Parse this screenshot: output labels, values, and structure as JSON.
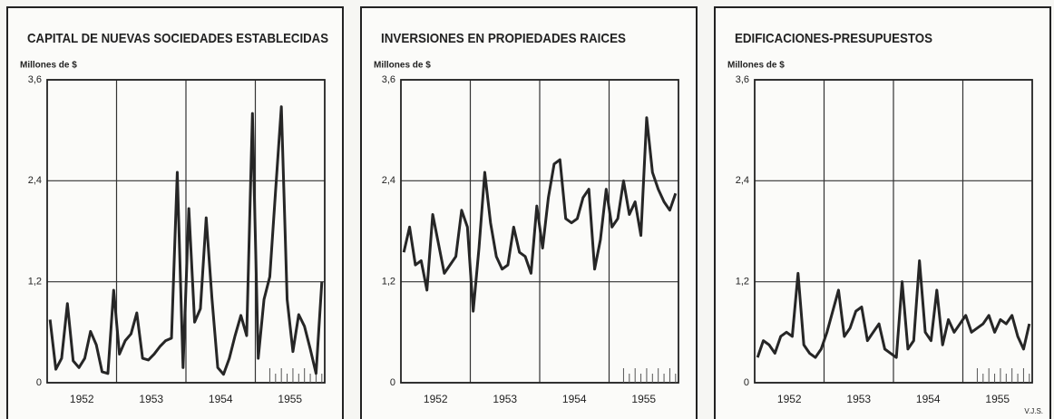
{
  "chart_data": [
    {
      "type": "line",
      "title": "CAPITAL DE NUEVAS SOCIEDADES ESTABLECIDAS",
      "ylabel": "Millones de $",
      "categories": [
        null,
        null,
        null,
        null,
        null,
        "1952",
        null,
        null,
        null,
        null,
        null,
        null,
        null,
        null,
        null,
        null,
        null,
        "1953",
        null,
        null,
        null,
        null,
        null,
        null,
        null,
        null,
        null,
        null,
        null,
        "1954",
        null,
        null,
        null,
        null,
        null,
        null,
        null,
        null,
        null,
        null,
        null,
        "1955",
        null,
        null,
        null,
        null,
        null,
        null
      ],
      "values": [
        0.75,
        0.16,
        0.29,
        0.94,
        0.26,
        0.18,
        0.29,
        0.61,
        0.45,
        0.13,
        0.11,
        1.1,
        0.34,
        0.5,
        0.58,
        0.83,
        0.29,
        0.27,
        0.34,
        0.43,
        0.5,
        0.53,
        2.5,
        0.18,
        2.07,
        0.72,
        0.88,
        1.96,
        1.0,
        0.18,
        0.1,
        0.29,
        0.56,
        0.8,
        0.56,
        3.2,
        0.29,
        0.99,
        1.26,
        2.28,
        3.28,
        0.99,
        0.37,
        0.81,
        0.67,
        0.4,
        0.11,
        1.2
      ],
      "color": "#262626",
      "ylim": [
        0,
        3.6
      ],
      "yticks": [
        0,
        {
          "value": 1.2,
          "label": "1,2"
        },
        {
          "value": 2.4,
          "label": "2,4"
        },
        {
          "value": 3.6,
          "label": "3,6"
        }
      ],
      "grid": true
    },
    {
      "type": "line",
      "title": "INVERSIONES EN PROPIEDADES RAICES",
      "ylabel": "Millones de $",
      "categories": [
        null,
        null,
        null,
        null,
        null,
        "1952",
        null,
        null,
        null,
        null,
        null,
        null,
        null,
        null,
        null,
        null,
        null,
        "1953",
        null,
        null,
        null,
        null,
        null,
        null,
        null,
        null,
        null,
        null,
        null,
        "1954",
        null,
        null,
        null,
        null,
        null,
        null,
        null,
        null,
        null,
        null,
        null,
        "1955",
        null,
        null,
        null,
        null,
        null,
        null
      ],
      "values": [
        1.55,
        1.85,
        1.4,
        1.45,
        1.1,
        2.0,
        1.65,
        1.3,
        1.4,
        1.5,
        2.05,
        1.85,
        0.85,
        1.6,
        2.5,
        1.9,
        1.5,
        1.35,
        1.4,
        1.85,
        1.55,
        1.5,
        1.3,
        2.1,
        1.6,
        2.2,
        2.6,
        2.65,
        1.95,
        1.9,
        1.95,
        2.2,
        2.3,
        1.35,
        1.7,
        2.3,
        1.85,
        1.95,
        2.4,
        2.0,
        2.15,
        1.75,
        3.15,
        2.5,
        2.3,
        2.15,
        2.05,
        2.25
      ],
      "color": "#262626",
      "ylim": [
        0,
        3.6
      ],
      "yticks": [
        0,
        {
          "value": 1.2,
          "label": "1,2"
        },
        {
          "value": 2.4,
          "label": "2,4"
        },
        {
          "value": 3.6,
          "label": "3,6"
        }
      ],
      "grid": true
    },
    {
      "type": "line",
      "title": "EDIFICACIONES-PRESUPUESTOS",
      "ylabel": "Millones de $",
      "categories": [
        null,
        null,
        null,
        null,
        null,
        "1952",
        null,
        null,
        null,
        null,
        null,
        null,
        null,
        null,
        null,
        null,
        null,
        "1953",
        null,
        null,
        null,
        null,
        null,
        null,
        null,
        null,
        null,
        null,
        null,
        "1954",
        null,
        null,
        null,
        null,
        null,
        null,
        null,
        null,
        null,
        null,
        null,
        "1955",
        null,
        null,
        null,
        null,
        null,
        null
      ],
      "values": [
        0.3,
        0.5,
        0.45,
        0.35,
        0.55,
        0.6,
        0.55,
        1.3,
        0.45,
        0.35,
        0.3,
        0.4,
        0.6,
        0.85,
        1.1,
        0.55,
        0.65,
        0.85,
        0.9,
        0.5,
        0.6,
        0.7,
        0.4,
        0.35,
        0.3,
        1.2,
        0.4,
        0.5,
        1.45,
        0.6,
        0.5,
        1.1,
        0.45,
        0.75,
        0.6,
        0.7,
        0.8,
        0.6,
        0.65,
        0.7,
        0.8,
        0.6,
        0.75,
        0.7,
        0.8,
        0.55,
        0.4,
        0.7
      ],
      "color": "#262626",
      "ylim": [
        0,
        3.6
      ],
      "yticks": [
        0,
        {
          "value": 1.2,
          "label": "1,2"
        },
        {
          "value": 2.4,
          "label": "2,4"
        },
        {
          "value": 3.6,
          "label": "3,6"
        }
      ],
      "grid": true,
      "signature": "V.J.S."
    }
  ]
}
